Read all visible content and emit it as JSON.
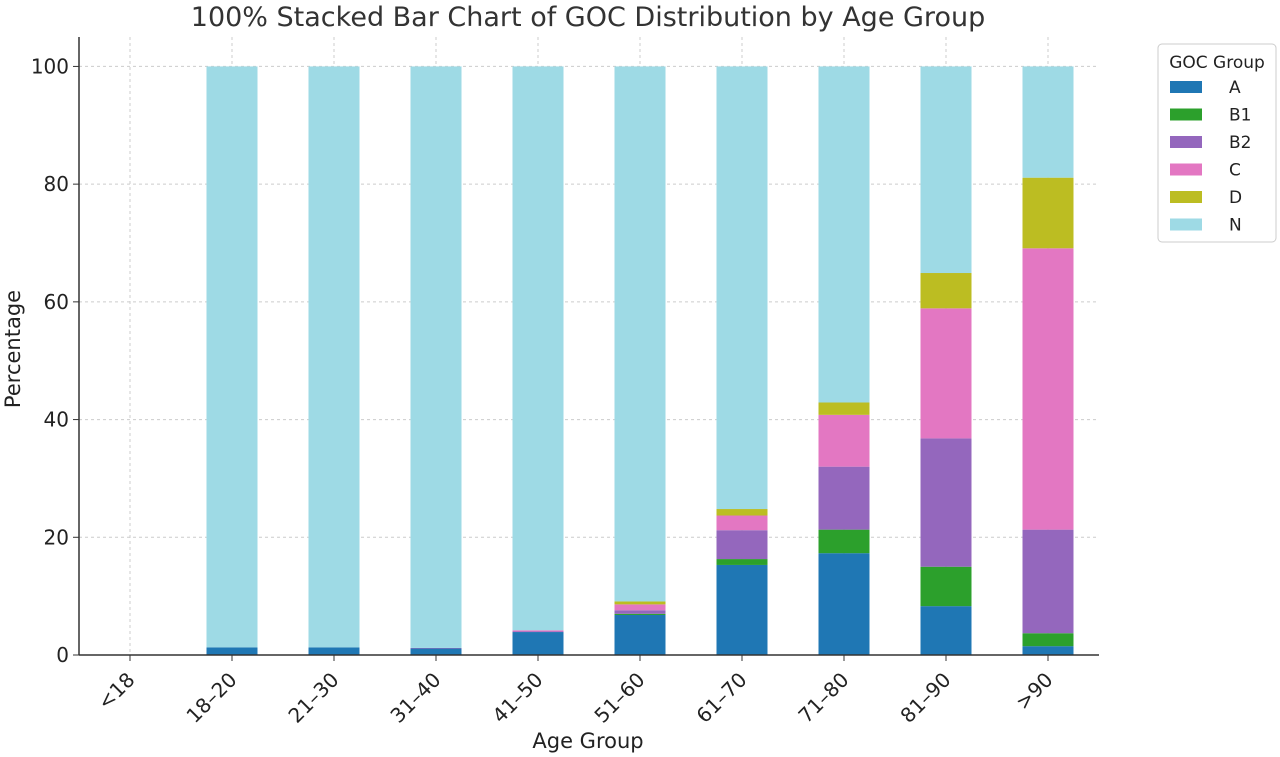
{
  "chart_data": {
    "type": "bar",
    "stacked": true,
    "title": "100% Stacked Bar Chart of GOC Distribution by Age Group",
    "xlabel": "Age Group",
    "ylabel": "Percentage",
    "ylim": [
      0,
      105
    ],
    "yticks": [
      0,
      20,
      40,
      60,
      80,
      100
    ],
    "grid": true,
    "legend_title": "GOC Group",
    "legend_position": "outside-top-right",
    "categories": [
      "<18",
      "18–20",
      "21–30",
      "31–40",
      "41–50",
      "51–60",
      "61–70",
      "71–80",
      "81–90",
      ">90"
    ],
    "series": [
      {
        "name": "A",
        "color": "#1f77b4",
        "values": [
          0,
          1.3,
          1.3,
          1.1,
          3.9,
          6.8,
          15.3,
          17.3,
          8.3,
          1.5
        ]
      },
      {
        "name": "B1",
        "color": "#2ca02c",
        "values": [
          0,
          0,
          0,
          0,
          0,
          0.2,
          1.0,
          4.0,
          6.7,
          2.2
        ]
      },
      {
        "name": "B2",
        "color": "#9467bd",
        "values": [
          0,
          0,
          0,
          0.1,
          0.1,
          0.6,
          4.9,
          10.7,
          21.8,
          17.6
        ]
      },
      {
        "name": "C",
        "color": "#e377c2",
        "values": [
          0,
          0,
          0,
          0,
          0.2,
          1.0,
          2.5,
          8.8,
          22.1,
          47.8
        ]
      },
      {
        "name": "D",
        "color": "#bcbd22",
        "values": [
          0,
          0,
          0,
          0,
          0,
          0.5,
          1.1,
          2.1,
          6.0,
          12.0
        ]
      },
      {
        "name": "N",
        "color": "#9edae5",
        "values": [
          0,
          98.7,
          98.7,
          98.8,
          95.8,
          90.9,
          75.2,
          57.1,
          35.1,
          18.9
        ]
      }
    ]
  }
}
